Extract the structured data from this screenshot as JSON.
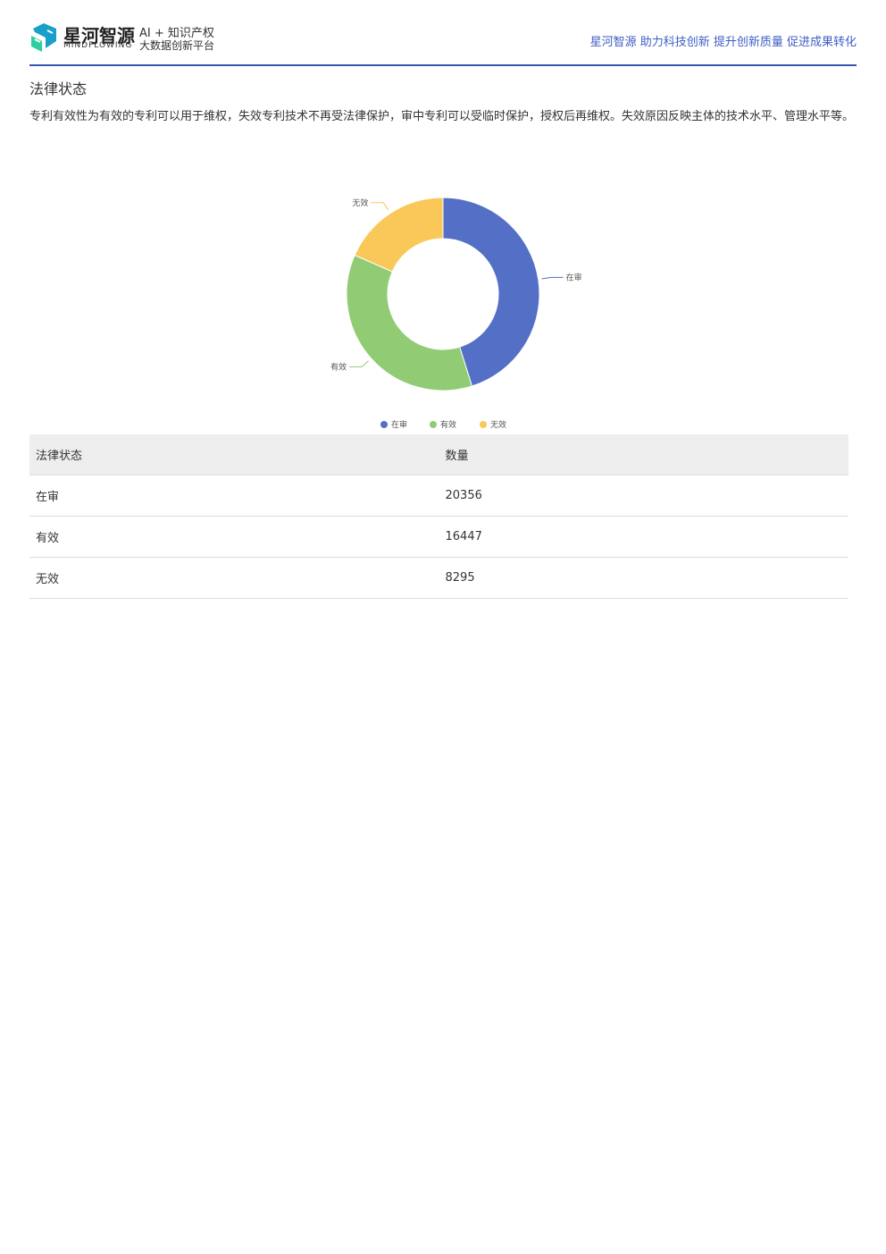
{
  "header": {
    "brand": "星河智源",
    "brand_en": "MINDFLOWING",
    "tagline_1": "AI + 知识产权",
    "tagline_2": "大数据创新平台",
    "slogan": "星河智源 助力科技创新 提升创新质量 促进成果转化"
  },
  "section": {
    "title": "法律状态",
    "description": "专利有效性为有效的专利可以用于维权，失效专利技术不再受法律保护，审中专利可以受临时保护，授权后再维权。失效原因反映主体的技术水平、管理水平等。"
  },
  "chart_data": {
    "type": "donut",
    "categories": [
      "在审",
      "有效",
      "无效"
    ],
    "values": [
      20356,
      16447,
      8295
    ],
    "colors": [
      "#5470c6",
      "#91cc75",
      "#fac858"
    ],
    "legend": "bottom"
  },
  "table": {
    "header": [
      "法律状态",
      "数量"
    ],
    "rows": [
      [
        "在审",
        20356
      ],
      [
        "有效",
        16447
      ],
      [
        "无效",
        8295
      ]
    ]
  }
}
